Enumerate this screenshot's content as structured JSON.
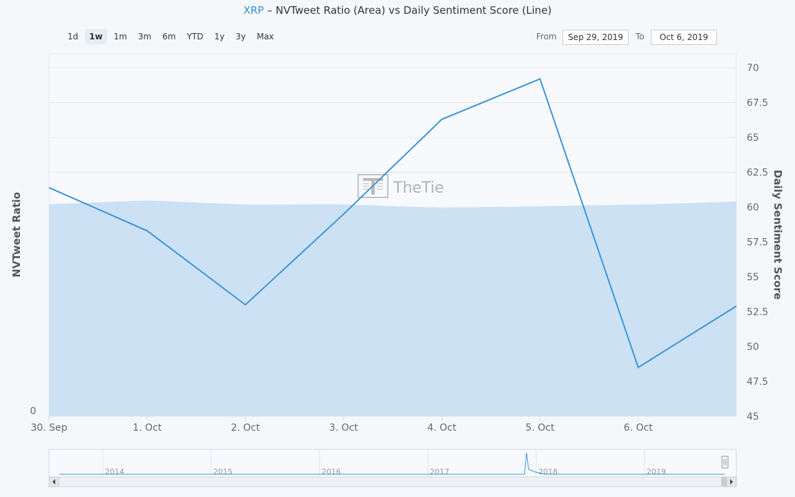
{
  "title": {
    "symbol": "XRP",
    "rest": " – NVTweet Ratio (Area) vs Daily Sentiment Score (Line)"
  },
  "range_selector": {
    "buttons": [
      "1d",
      "1w",
      "1m",
      "3m",
      "6m",
      "YTD",
      "1y",
      "3y",
      "Max"
    ],
    "selected": "1w"
  },
  "date_inputs": {
    "from_label": "From",
    "from_value": "Sep 29, 2019",
    "to_label": "To",
    "to_value": "Oct 6, 2019"
  },
  "watermark": "TheTie",
  "navigator": {
    "year_labels": [
      "2014",
      "2015",
      "2016",
      "2017",
      "2018",
      "2019"
    ]
  },
  "colors": {
    "line": "#3a95d6",
    "area": "#c6def3",
    "area_top": "#cfe3f5",
    "grid": "#e4e8ee"
  },
  "chart_data": {
    "type": "area",
    "x_tick_labels": [
      "30. Sep",
      "1. Oct",
      "2. Oct",
      "3. Oct",
      "4. Oct",
      "5. Oct",
      "6. Oct"
    ],
    "left_axis": {
      "label": "NVTweet Ratio",
      "tick_labels": [
        "0"
      ]
    },
    "right_axis": {
      "label": "Daily Sentiment Score",
      "tick_labels": [
        "45",
        "47.5",
        "50",
        "52.5",
        "55",
        "57.5",
        "60",
        "62.5",
        "65",
        "67.5",
        "70"
      ],
      "range": [
        45,
        71
      ]
    },
    "grid": true,
    "series": [
      {
        "name": "NVTweet Ratio",
        "kind": "area",
        "axis": "left",
        "x": [
          0,
          1,
          2,
          3,
          4,
          5,
          6,
          7
        ],
        "values": [
          0.555,
          0.565,
          0.554,
          0.555,
          0.545,
          0.55,
          0.554,
          0.562
        ]
      },
      {
        "name": "Daily Sentiment Score",
        "kind": "line",
        "axis": "right",
        "x": [
          0,
          1,
          2,
          3,
          4,
          5,
          6,
          7
        ],
        "values": [
          61.4,
          58.3,
          53.0,
          59.5,
          66.3,
          69.2,
          48.5,
          52.9
        ]
      }
    ]
  }
}
